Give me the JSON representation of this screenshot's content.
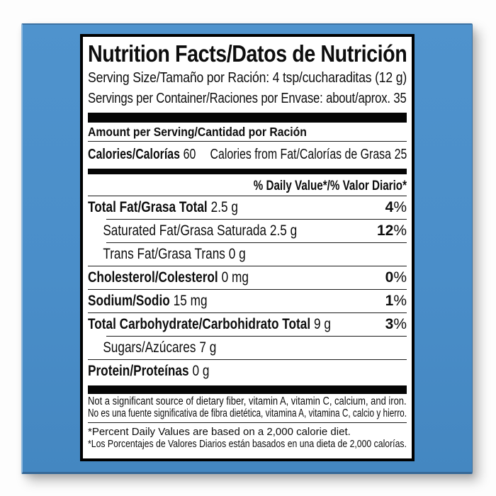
{
  "colors": {
    "panel_blue": "#4a8ec9",
    "label_background": "#ffffff",
    "label_border": "#000000",
    "text": "#0d0d0d"
  },
  "label": {
    "title": "Nutrition Facts/Datos de Nutrición",
    "serving_size": "Serving Size/Tamaño por Ración: 4 tsp/cucharaditas (12 g)",
    "servings_per_container": "Servings per Container/Raciones por Envase: about/aprox. 35",
    "amount_per_serving": "Amount per Serving/Cantidad por Ración",
    "calories": {
      "label": "Calories/Calorías",
      "value": "60",
      "from_fat_label": "Calories from Fat/Calorías de Grasa",
      "from_fat_value": "25"
    },
    "daily_value_header": "% Daily Value*/% Valor Diario*",
    "rows": [
      {
        "label": "Total Fat/Grasa Total",
        "value": "2.5 g",
        "dv_num": "4",
        "dv_sign": "%"
      },
      {
        "label": "Saturated Fat/Grasa Saturada",
        "value": "2.5 g",
        "dv_num": "12",
        "dv_sign": "%"
      },
      {
        "label": "Trans Fat/Grasa Trans",
        "value": "0 g",
        "dv_num": "",
        "dv_sign": ""
      },
      {
        "label": "Cholesterol/Colesterol",
        "value": "0 mg",
        "dv_num": "0",
        "dv_sign": "%"
      },
      {
        "label": "Sodium/Sodio",
        "value": "15 mg",
        "dv_num": "1",
        "dv_sign": "%"
      },
      {
        "label": "Total Carbohydrate/Carbohidrato Total",
        "value": "9 g",
        "dv_num": "3",
        "dv_sign": "%"
      },
      {
        "label": "Sugars/Azúcares",
        "value": "7 g",
        "dv_num": "",
        "dv_sign": ""
      },
      {
        "label": "Protein/Proteínas",
        "value": "0 g",
        "dv_num": "",
        "dv_sign": ""
      }
    ],
    "footnote_sources": [
      "Not a significant source of dietary fiber, vitamin A, vitamin C, calcium, and iron.",
      "No es una fuente significativa de fibra dietética, vitamina A, vitamina C, calcio y hierro."
    ],
    "footnote_daily_values": [
      "*Percent Daily Values are based on a 2,000 calorie diet.",
      "*Los Porcentajes de Valores Diarios están basados en una dieta de 2,000 calorías."
    ]
  }
}
